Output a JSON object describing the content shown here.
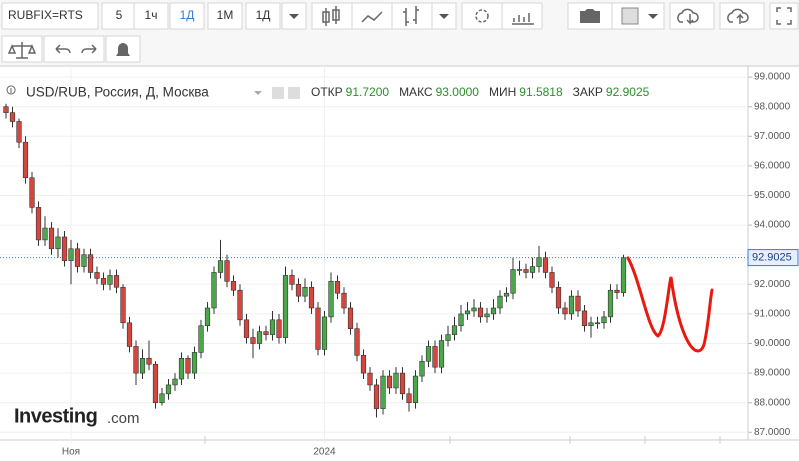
{
  "toolbar": {
    "symbol": "RUBFIX=RTS",
    "intervals": [
      "5",
      "1ч",
      "1Д",
      "1М",
      "1Д"
    ]
  },
  "chart_data": {
    "type": "candlestick",
    "title": "USD/RUB, Россия, Д, Москва",
    "ohlc_legend": [
      {
        "name": "ОТКР",
        "value": "91.7200"
      },
      {
        "name": "МАКС",
        "value": "93.0000"
      },
      {
        "name": "МИН",
        "value": "91.5818"
      },
      {
        "name": "ЗАКР",
        "value": "92.9025"
      }
    ],
    "logo": {
      "main": "Investing",
      "suffix": ".com"
    },
    "up_color": "#4ca64c",
    "down_color": "#d4473f",
    "last_line_color": "#3c78d8",
    "categories": [
      null,
      null,
      null,
      null,
      null,
      null,
      null,
      null,
      null,
      null,
      "Ноя",
      null,
      null,
      null,
      null,
      null,
      null,
      null,
      null,
      null,
      null,
      null,
      null,
      null,
      null,
      null,
      null,
      null,
      null,
      null,
      null,
      null,
      null,
      null,
      null,
      null,
      null,
      null,
      null,
      null,
      null,
      null,
      null,
      null,
      null,
      null,
      null,
      null,
      null,
      "2024",
      null,
      null,
      null,
      null,
      null,
      null,
      null,
      null,
      null,
      null,
      null,
      null,
      null,
      null,
      null,
      null,
      null,
      null,
      null,
      null,
      null,
      null,
      null,
      null,
      null,
      null,
      null,
      null,
      null,
      null,
      null,
      null,
      null,
      null,
      null,
      null,
      null,
      null,
      null,
      null,
      null,
      null,
      null,
      null,
      null,
      null
    ],
    "open": [
      98.0,
      97.8,
      97.5,
      96.8,
      95.6,
      94.6,
      93.5,
      93.9,
      93.2,
      93.6,
      92.8,
      93.2,
      92.6,
      93.0,
      92.4,
      92.2,
      92.0,
      92.3,
      91.9,
      90.7,
      89.9,
      89.0,
      89.5,
      89.3,
      88.0,
      88.3,
      88.6,
      88.8,
      89.5,
      89.0,
      89.7,
      90.6,
      91.2,
      92.4,
      92.8,
      92.1,
      91.8,
      90.8,
      90.2,
      90.0,
      90.4,
      90.3,
      90.8,
      90.2,
      92.3,
      92.0,
      91.6,
      91.9,
      91.2,
      89.8,
      90.9,
      92.1,
      91.7,
      91.2,
      90.5,
      89.6,
      89.0,
      88.6,
      87.8,
      88.9,
      88.5,
      89.0,
      88.3,
      88.0,
      88.9,
      89.4,
      89.9,
      89.2,
      90.1,
      90.3,
      90.6,
      91.0,
      91.1,
      91.2,
      90.9,
      91.0,
      91.2,
      91.6,
      91.7,
      92.5,
      92.5,
      92.4,
      92.6,
      92.9,
      92.4,
      91.9,
      91.2,
      91.0,
      91.6,
      91.1,
      90.6,
      90.7,
      90.7,
      90.9,
      91.8,
      91.72
    ],
    "high": [
      98.1,
      98.0,
      97.6,
      97.0,
      95.8,
      94.8,
      94.3,
      94.1,
      93.9,
      93.8,
      93.5,
      93.4,
      93.2,
      93.2,
      92.6,
      92.4,
      92.5,
      92.5,
      92.0,
      90.9,
      90.1,
      89.8,
      90.1,
      89.4,
      88.5,
      88.8,
      89.0,
      89.7,
      89.6,
      89.9,
      90.8,
      91.4,
      92.6,
      93.5,
      93.0,
      92.3,
      92.0,
      91.0,
      90.5,
      90.6,
      90.6,
      91.1,
      91.0,
      92.6,
      92.5,
      92.2,
      92.2,
      92.1,
      91.4,
      91.1,
      92.4,
      92.3,
      91.9,
      91.4,
      90.7,
      89.8,
      89.2,
      88.8,
      89.1,
      89.1,
      89.2,
      89.2,
      88.5,
      89.1,
      89.6,
      90.1,
      90.1,
      90.3,
      90.6,
      90.9,
      91.3,
      91.4,
      91.5,
      91.4,
      91.2,
      91.5,
      91.8,
      91.9,
      92.9,
      92.8,
      92.7,
      92.9,
      93.3,
      93.1,
      92.6,
      92.1,
      91.4,
      91.8,
      91.8,
      91.3,
      90.9,
      90.9,
      91.1,
      92.0,
      92.0,
      93.0
    ],
    "low": [
      97.6,
      97.3,
      96.6,
      95.4,
      94.4,
      93.3,
      93.3,
      93.0,
      92.9,
      92.6,
      92.0,
      92.4,
      92.4,
      92.2,
      92.0,
      91.8,
      91.8,
      91.7,
      90.5,
      89.7,
      88.6,
      88.8,
      89.1,
      87.8,
      87.9,
      88.1,
      88.4,
      88.6,
      88.8,
      88.8,
      89.5,
      90.4,
      91.0,
      92.2,
      91.9,
      91.6,
      90.6,
      90.0,
      89.5,
      89.8,
      90.1,
      90.1,
      90.0,
      90.0,
      91.8,
      91.4,
      91.4,
      91.0,
      89.6,
      89.6,
      90.7,
      91.5,
      91.0,
      90.3,
      89.4,
      88.8,
      88.4,
      87.5,
      87.6,
      88.3,
      88.3,
      88.1,
      87.7,
      87.8,
      88.7,
      89.2,
      89.0,
      89.0,
      89.9,
      90.1,
      90.4,
      90.8,
      90.9,
      90.7,
      90.7,
      90.8,
      91.0,
      91.4,
      91.5,
      92.3,
      92.2,
      92.2,
      92.4,
      92.2,
      91.7,
      91.0,
      90.8,
      90.8,
      90.9,
      90.4,
      90.2,
      90.5,
      90.5,
      90.7,
      91.5,
      91.5818
    ],
    "close": [
      97.8,
      97.5,
      96.8,
      95.6,
      94.6,
      93.5,
      93.9,
      93.2,
      93.6,
      92.8,
      93.2,
      92.6,
      93.0,
      92.4,
      92.2,
      92.0,
      92.3,
      91.9,
      90.7,
      89.9,
      89.0,
      89.5,
      89.3,
      88.0,
      88.3,
      88.6,
      88.8,
      89.5,
      89.0,
      89.7,
      90.6,
      91.2,
      92.4,
      92.8,
      92.1,
      91.8,
      90.8,
      90.2,
      90.0,
      90.4,
      90.3,
      90.8,
      90.2,
      92.3,
      92.0,
      91.6,
      91.9,
      91.2,
      89.8,
      90.9,
      92.1,
      91.7,
      91.2,
      90.5,
      89.6,
      89.0,
      88.6,
      87.8,
      88.9,
      88.5,
      89.0,
      88.3,
      88.0,
      88.9,
      89.4,
      89.9,
      89.2,
      90.1,
      90.3,
      90.6,
      91.0,
      91.1,
      91.2,
      90.9,
      91.0,
      91.2,
      91.6,
      91.7,
      92.5,
      92.5,
      92.4,
      92.6,
      92.9,
      92.4,
      91.9,
      91.2,
      91.0,
      91.6,
      91.1,
      90.6,
      90.7,
      90.7,
      90.9,
      91.8,
      91.72,
      92.9025
    ],
    "ylim": [
      86.74,
      99.24
    ],
    "yticks": [
      {
        "value": 87,
        "label": "87.0000"
      },
      {
        "value": 88,
        "label": "88.0000"
      },
      {
        "value": 89,
        "label": "89.0000"
      },
      {
        "value": 90,
        "label": "90.0000"
      },
      {
        "value": 91,
        "label": "91.0000"
      },
      {
        "value": 92,
        "label": "92.0000"
      },
      {
        "value": 93,
        "label": "93.0000"
      },
      {
        "value": 94,
        "label": "94.0000"
      },
      {
        "value": 95,
        "label": "95.0000"
      },
      {
        "value": 96,
        "label": "96.0000"
      },
      {
        "value": 97,
        "label": "97.0000"
      },
      {
        "value": 98,
        "label": "98.0000"
      },
      {
        "value": 99,
        "label": "99.0000"
      }
    ],
    "grid": true
  }
}
